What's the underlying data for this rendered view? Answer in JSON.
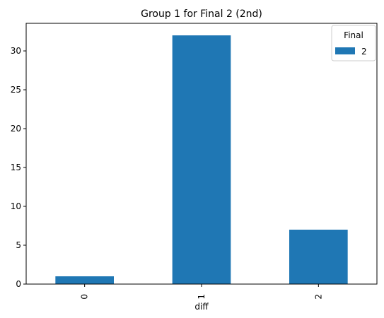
{
  "chart_data": {
    "type": "bar",
    "title": "Group 1 for Final 2 (2nd)",
    "xlabel": "diff",
    "ylabel": "",
    "categories": [
      "0",
      "1",
      "2"
    ],
    "series": [
      {
        "name": "2",
        "values": [
          1,
          32,
          7
        ],
        "color": "#1f77b4"
      }
    ],
    "ylim": [
      0,
      33.55
    ],
    "yticks": [
      0,
      5,
      10,
      15,
      20,
      25,
      30
    ],
    "legend": {
      "title": "Final",
      "placement": "top-right"
    },
    "grid": false
  }
}
